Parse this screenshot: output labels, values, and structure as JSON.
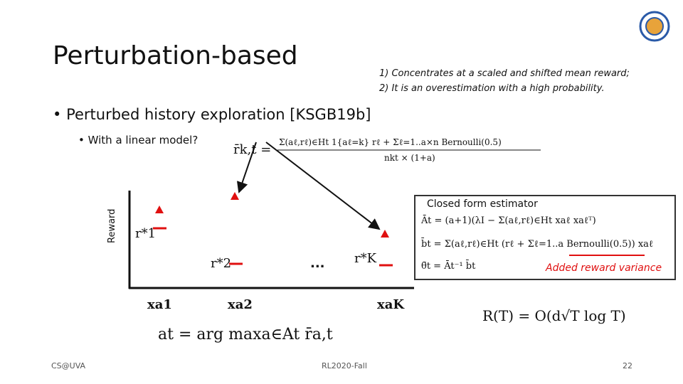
{
  "header": {
    "title": "Perturbation-based",
    "notes": [
      "1) Concentrates at a scaled and shifted mean reward;",
      "2) It is an overestimation with a high probability."
    ]
  },
  "bullet": "Perturbed history exploration [KSGB19b]",
  "sub_bullet": "With a linear model?",
  "reward_formula": {
    "lhs": "r̄k,t =",
    "numerator": "Σ(aℓ,rℓ)∈Ht 1{aℓ=k} rℓ + Σℓ=1..a×n Bernoulli(0.5)",
    "denominator": "nkt × (1+a)"
  },
  "diagram": {
    "axis_label": "Reward",
    "arm_labels": [
      "xa1",
      "xa2",
      "xaK"
    ],
    "optimal_labels": [
      "r*1",
      "r*2",
      "r*K"
    ],
    "ellipsis": "..."
  },
  "estimator": {
    "title": "Closed form estimator",
    "lines": [
      "Āt = (a+1)(λI − Σ(aℓ,rℓ)∈Ht xaℓ xaℓᵀ)",
      "b̄t = Σ(aℓ,rℓ)∈Ht (rℓ + Σℓ=1..a Bernoulli(0.5)) xaℓ",
      "θ̄t = Āt⁻¹ b̄t"
    ],
    "annotation": "Added reward variance"
  },
  "regret": "R(T) = O(d√T log T)",
  "argmax": "at = arg maxa∈At r̄a,t",
  "footer": {
    "left": "CS@UVA",
    "center": "RL2020-Fall",
    "page": "22"
  }
}
